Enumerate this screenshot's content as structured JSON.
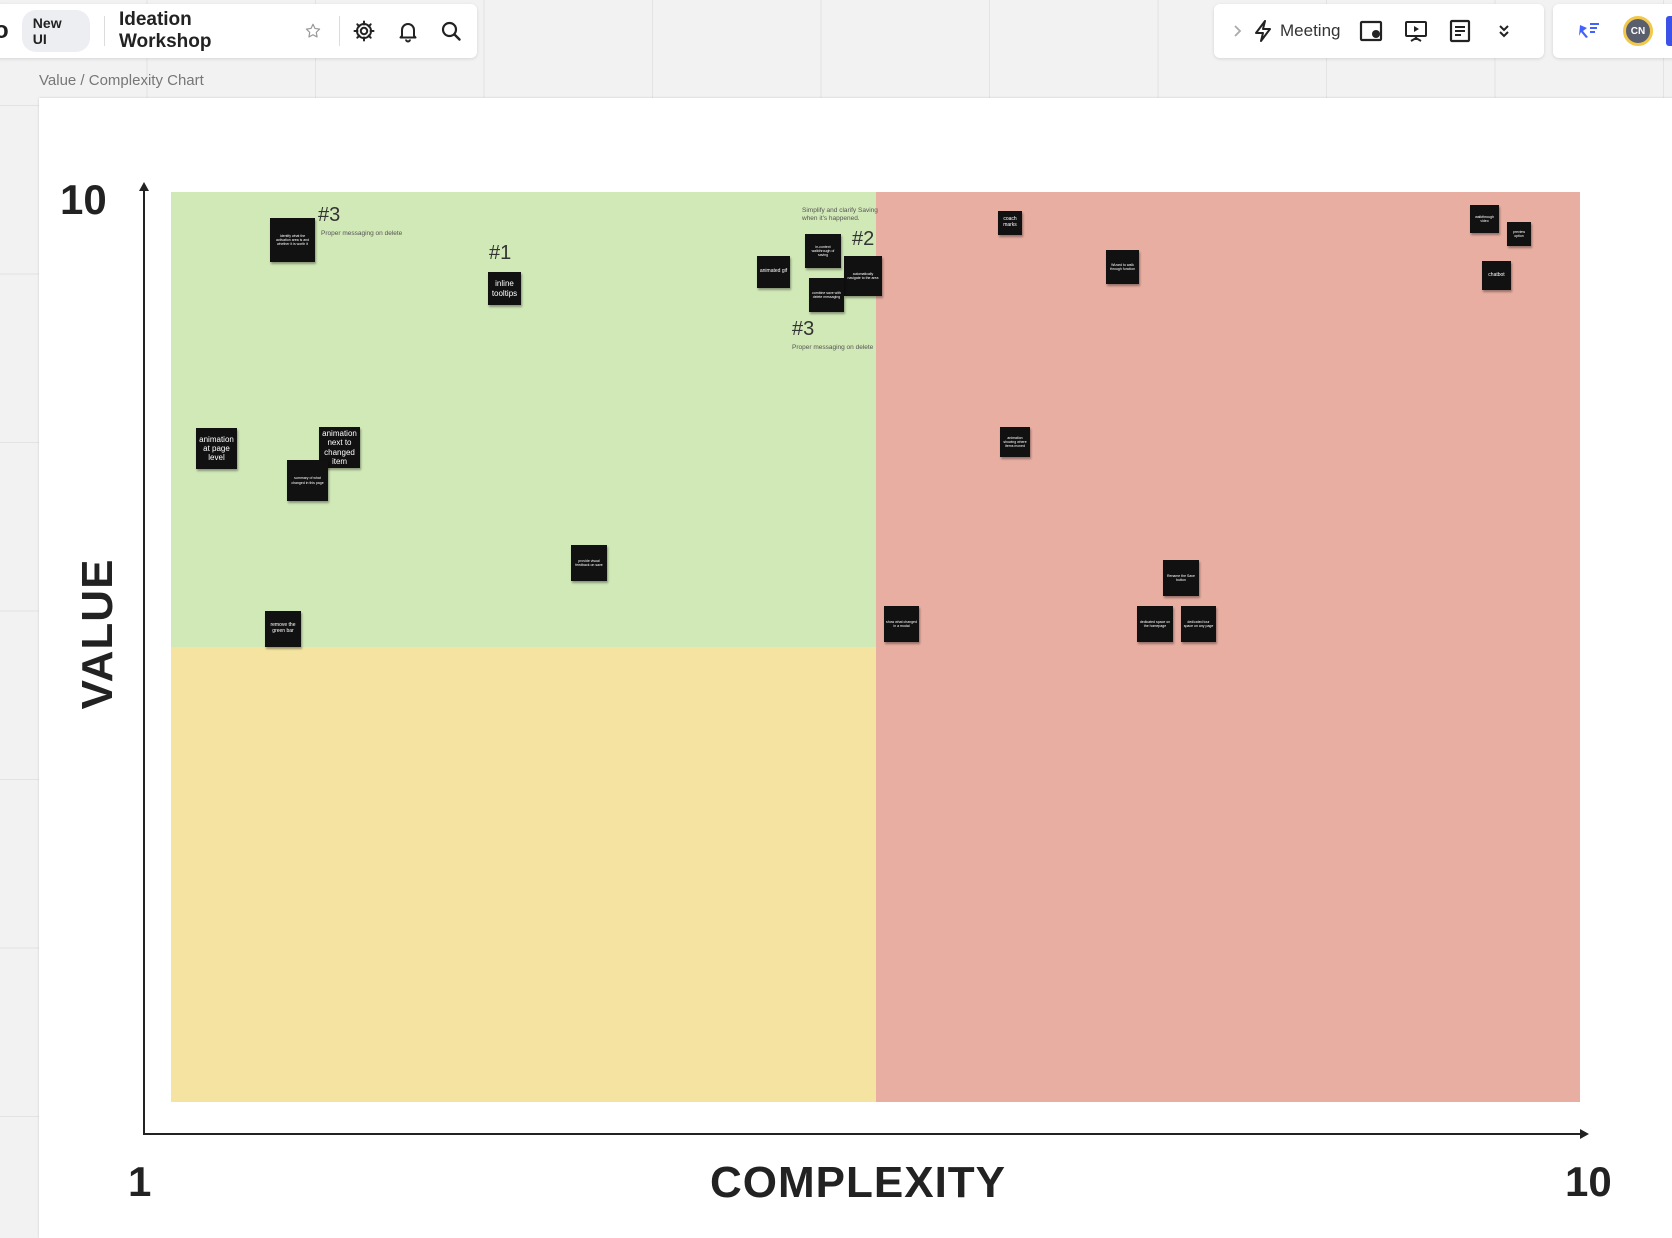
{
  "toolbar": {
    "new_ui_label": "New UI",
    "board_title": "Ideation Workshop",
    "meeting_label": "Meeting",
    "avatar_initials": "CN",
    "logo_fragment": "o"
  },
  "frame": {
    "label": "Value / Complexity Chart"
  },
  "chart": {
    "y_axis_title": "VALUE",
    "x_axis_title": "COMPLEXITY",
    "y_max_label": "10",
    "x_min_label": "1",
    "x_max_label": "10",
    "quadrant_colors": {
      "high_value_low_complexity": "#d1e8b7",
      "low_value_low_complexity": "#f5e4a1",
      "high_complexity": "#e8aea2"
    }
  },
  "annotations": {
    "rank_1": "#1",
    "rank_2": "#2",
    "rank_3a": "#3",
    "rank_3b": "#3",
    "note_3a": "Proper messaging on delete",
    "note_3b": "Proper messaging on delete",
    "note_2_caption": "Simplify and clarify Saving when it's happened."
  },
  "notes": {
    "n1": "Identify what the activation area is and whether it is worth it",
    "n2": "inline tooltips",
    "n3": "animated gif",
    "n4": "in-context walkthrough of saving",
    "n5": "automatically navigate to the area",
    "n6": "combine save with delete messaging",
    "n7": "coach marks",
    "n8": "Wizard to walk through function",
    "n9": "walkthrough video",
    "n10": "preview option",
    "n11": "chatbot",
    "n12": "animation at page level",
    "n13": "animation next to changed item",
    "n14": "summary of what changed in this page",
    "n15": "provide visual feedback on save",
    "n16": "remove the green bar",
    "n17": "show what changed in a modal",
    "n18": "animation showing where items moved",
    "n19": "Rename the Save button",
    "n20": "dedicated space on the homepage",
    "n21": "dedicated tour space on any page"
  }
}
